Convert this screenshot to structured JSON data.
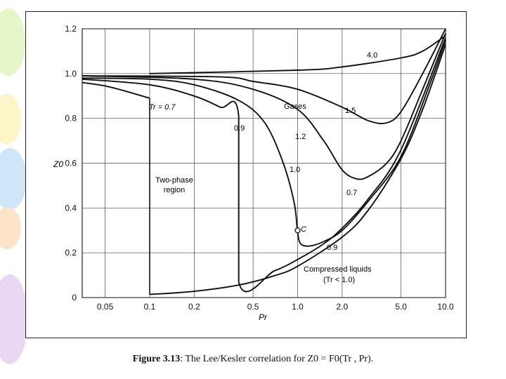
{
  "chart_data": {
    "type": "line",
    "title": "",
    "xlabel": "Pr",
    "ylabel": "Z0",
    "x_scale": "log",
    "xlim": [
      0.035,
      10.0
    ],
    "ylim": [
      0,
      1.2
    ],
    "x_ticks": [
      0.05,
      0.1,
      0.2,
      0.5,
      1.0,
      2.0,
      5.0,
      10.0
    ],
    "x_tick_labels": [
      "0.05",
      "0.1",
      "0.2",
      "0.5",
      "1.0",
      "2.0",
      "5.0",
      "10.0"
    ],
    "y_ticks": [
      0,
      0.2,
      0.4,
      0.6,
      0.8,
      1.0,
      1.2
    ],
    "y_tick_labels": [
      "0",
      "0.2",
      "0.4",
      "0.6",
      "0.8",
      "1.0",
      "1.2"
    ],
    "grid": true,
    "series": [
      {
        "name": "Tr = 0.7 vapor",
        "x": [
          0.035,
          0.05,
          0.07,
          0.1
        ],
        "y": [
          0.96,
          0.945,
          0.92,
          0.89
        ]
      },
      {
        "name": "Tr = 0.7 liquid",
        "x": [
          0.1,
          0.2,
          0.4,
          0.7,
          1.0,
          2.0,
          3.0,
          5.0,
          7.0,
          10.0
        ],
        "y": [
          0.014,
          0.028,
          0.056,
          0.098,
          0.14,
          0.27,
          0.39,
          0.62,
          0.84,
          1.13
        ]
      },
      {
        "name": "Tr = 0.9",
        "x": [
          0.035,
          0.1,
          0.2,
          0.3,
          0.4,
          0.4,
          0.7,
          1.0,
          1.5,
          2.0,
          3.0,
          5.0,
          10.0
        ],
        "y": [
          0.975,
          0.95,
          0.9,
          0.85,
          0.81,
          0.07,
          0.12,
          0.17,
          0.24,
          0.31,
          0.44,
          0.66,
          1.16
        ]
      },
      {
        "name": "Tr = 1.0",
        "x": [
          0.035,
          0.1,
          0.2,
          0.4,
          0.6,
          0.8,
          0.95,
          1.0,
          1.05,
          1.2,
          1.5,
          2.0,
          3.0,
          5.0,
          8.0,
          10.0
        ],
        "y": [
          0.98,
          0.975,
          0.95,
          0.88,
          0.78,
          0.6,
          0.42,
          0.29,
          0.24,
          0.23,
          0.25,
          0.3,
          0.43,
          0.63,
          0.97,
          1.15
        ]
      },
      {
        "name": "Tr = 1.2",
        "x": [
          0.035,
          0.2,
          0.5,
          1.0,
          1.5,
          2.0,
          2.5,
          3.0,
          4.0,
          5.0,
          7.0,
          10.0
        ],
        "y": [
          0.99,
          0.975,
          0.93,
          0.84,
          0.7,
          0.57,
          0.53,
          0.54,
          0.6,
          0.7,
          0.93,
          1.18
        ]
      },
      {
        "name": "Tr = 1.5",
        "x": [
          0.035,
          0.3,
          0.5,
          1.0,
          2.0,
          3.0,
          4.0,
          5.0,
          7.0,
          10.0
        ],
        "y": [
          0.99,
          0.985,
          0.965,
          0.93,
          0.85,
          0.79,
          0.78,
          0.83,
          1.0,
          1.2
        ]
      },
      {
        "name": "Tr = 4.0",
        "x": [
          0.1,
          1.0,
          2.0,
          5.0,
          7.0,
          10.0
        ],
        "y": [
          1.0,
          1.015,
          1.03,
          1.07,
          1.1,
          1.17
        ]
      }
    ],
    "critical_point": {
      "x": 1.0,
      "y": 0.3,
      "label": "C"
    },
    "boundaries": [
      {
        "x": 0.1,
        "y_from": 0.014,
        "y_to": 0.89
      },
      {
        "x": 0.4,
        "y_from": 0.07,
        "y_to": 0.81
      }
    ],
    "curve_labels": [
      "4.0",
      "1.5",
      "1.2",
      "1.0",
      "0.9",
      "0.7",
      "0.9"
    ],
    "annotations": {
      "tr07": "Tr = 0.7",
      "gases": "Gases",
      "two_phase": [
        "Two-phase",
        "region"
      ],
      "compressed": [
        "Compressed liquids",
        "(Tr < 1.0)"
      ]
    },
    "caption": {
      "lead": "Figure 3.13",
      "text": ": The Lee/Kesler correlation for Z0 = F0(Tr , Pr)."
    }
  }
}
